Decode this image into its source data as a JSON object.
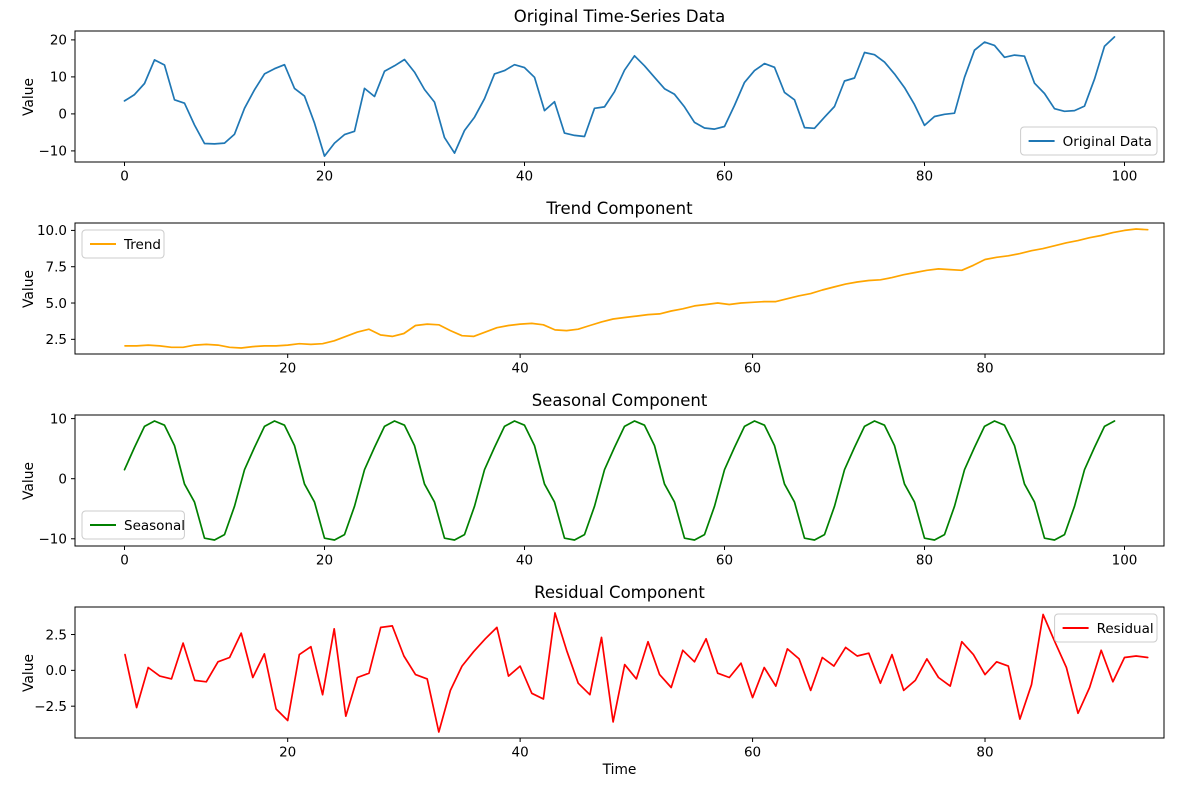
{
  "figure": {
    "background": "#ffffff",
    "xlabel": "Time",
    "text_color": "#000000",
    "spine_color": "#000000",
    "legend_edge_color": "#cccccc",
    "legend_face_color": "#ffffff"
  },
  "chart_data": [
    {
      "type": "line",
      "title": "Original Time-Series Data",
      "ylabel": "Value",
      "xlabel": "",
      "legend": {
        "label": "Original Data",
        "loc": "lower right"
      },
      "color": "#1f77b4",
      "x_start": 0,
      "x_step": 1,
      "xlim": [
        -4.95,
        103.95
      ],
      "ylim": [
        -13.0,
        22.4
      ],
      "xticks": [
        0,
        20,
        40,
        60,
        80,
        100
      ],
      "xtick_labels": [
        "0",
        "20",
        "40",
        "60",
        "80",
        "100"
      ],
      "yticks": [
        -10,
        0,
        10,
        20
      ],
      "ytick_labels": [
        "−10",
        "0",
        "10",
        "20"
      ],
      "grid": false,
      "values": [
        3.5,
        5.2,
        8.2,
        14.6,
        13.2,
        3.8,
        2.9,
        -3.0,
        -8.0,
        -8.1,
        -7.9,
        -5.5,
        1.5,
        6.5,
        10.8,
        12.2,
        13.3,
        6.9,
        4.8,
        -2.5,
        -11.4,
        -7.9,
        -5.6,
        -4.7,
        6.9,
        4.7,
        11.5,
        13.0,
        14.7,
        11.3,
        6.6,
        3.2,
        -6.4,
        -10.6,
        -4.5,
        -0.9,
        4.1,
        10.8,
        11.7,
        13.3,
        12.5,
        9.9,
        0.9,
        3.3,
        -5.2,
        -5.8,
        -6.1,
        1.5,
        1.9,
        6.0,
        11.8,
        15.7,
        13.0,
        9.9,
        6.8,
        5.3,
        1.9,
        -2.3,
        -3.8,
        -4.1,
        -3.4,
        2.3,
        8.5,
        11.7,
        13.6,
        12.6,
        5.8,
        3.8,
        -3.7,
        -3.9,
        -0.9,
        2.0,
        8.9,
        9.7,
        16.6,
        16.0,
        14.0,
        10.8,
        7.1,
        2.5,
        -3.1,
        -0.7,
        -0.1,
        0.2,
        9.9,
        17.2,
        19.4,
        18.5,
        15.3,
        15.9,
        15.6,
        8.3,
        5.5,
        1.4,
        0.7,
        0.9,
        2.1,
        9.4,
        18.3,
        20.8
      ]
    },
    {
      "type": "line",
      "title": "Trend Component",
      "ylabel": "Value",
      "xlabel": "",
      "legend": {
        "label": "Trend",
        "loc": "upper left"
      },
      "color": "#ffa500",
      "x_start": 6,
      "x_step": 1,
      "xlim": [
        1.7,
        95.4
      ],
      "ylim": [
        1.49,
        10.51
      ],
      "xticks": [
        20,
        40,
        60,
        80
      ],
      "xtick_labels": [
        "20",
        "40",
        "60",
        "80"
      ],
      "yticks": [
        2.5,
        5.0,
        7.5,
        10.0
      ],
      "ytick_labels": [
        "2.5",
        "5.0",
        "7.5",
        "10.0"
      ],
      "grid": false,
      "values": [
        2.05,
        2.05,
        2.1,
        2.05,
        1.95,
        1.95,
        2.1,
        2.15,
        2.1,
        1.95,
        1.9,
        2.0,
        2.05,
        2.05,
        2.1,
        2.2,
        2.15,
        2.2,
        2.4,
        2.7,
        3.0,
        3.2,
        2.8,
        2.7,
        2.9,
        3.45,
        3.55,
        3.5,
        3.1,
        2.75,
        2.7,
        3.0,
        3.3,
        3.45,
        3.55,
        3.6,
        3.5,
        3.15,
        3.1,
        3.2,
        3.45,
        3.7,
        3.9,
        4.0,
        4.1,
        4.2,
        4.25,
        4.45,
        4.6,
        4.8,
        4.9,
        5.0,
        4.9,
        5.0,
        5.05,
        5.1,
        5.1,
        5.3,
        5.5,
        5.65,
        5.9,
        6.1,
        6.3,
        6.45,
        6.55,
        6.6,
        6.75,
        6.95,
        7.1,
        7.25,
        7.35,
        7.3,
        7.25,
        7.6,
        8.0,
        8.15,
        8.25,
        8.4,
        8.6,
        8.75,
        8.95,
        9.15,
        9.3,
        9.5,
        9.65,
        9.85,
        10.0,
        10.1,
        10.05
      ]
    },
    {
      "type": "line",
      "title": "Seasonal Component",
      "ylabel": "Value",
      "xlabel": "",
      "legend": {
        "label": "Seasonal",
        "loc": "lower left"
      },
      "color": "#008000",
      "x_start": 0,
      "x_step": 1,
      "xlim": [
        -4.95,
        103.95
      ],
      "ylim": [
        -11.2,
        10.6
      ],
      "xticks": [
        0,
        20,
        40,
        60,
        80,
        100
      ],
      "xtick_labels": [
        "0",
        "20",
        "40",
        "60",
        "80",
        "100"
      ],
      "yticks": [
        -10,
        0,
        10
      ],
      "ytick_labels": [
        "−10",
        "0",
        "10"
      ],
      "grid": false,
      "values": [
        1.5,
        5.2,
        8.7,
        9.6,
        8.9,
        5.5,
        -0.9,
        -3.9,
        -9.9,
        -10.2,
        -9.3,
        -4.6,
        1.5,
        5.2,
        8.7,
        9.6,
        8.9,
        5.5,
        -0.9,
        -3.9,
        -9.9,
        -10.2,
        -9.3,
        -4.6,
        1.5,
        5.2,
        8.7,
        9.6,
        8.9,
        5.5,
        -0.9,
        -3.9,
        -9.9,
        -10.2,
        -9.3,
        -4.6,
        1.5,
        5.2,
        8.7,
        9.6,
        8.9,
        5.5,
        -0.9,
        -3.9,
        -9.9,
        -10.2,
        -9.3,
        -4.6,
        1.5,
        5.2,
        8.7,
        9.6,
        8.9,
        5.5,
        -0.9,
        -3.9,
        -9.9,
        -10.2,
        -9.3,
        -4.6,
        1.5,
        5.2,
        8.7,
        9.6,
        8.9,
        5.5,
        -0.9,
        -3.9,
        -9.9,
        -10.2,
        -9.3,
        -4.6,
        1.5,
        5.2,
        8.7,
        9.6,
        8.9,
        5.5,
        -0.9,
        -3.9,
        -9.9,
        -10.2,
        -9.3,
        -4.6,
        1.5,
        5.2,
        8.7,
        9.6,
        8.9,
        5.5,
        -0.9,
        -3.9,
        -9.9,
        -10.2,
        -9.3,
        -4.6,
        1.5,
        5.2,
        8.7,
        9.6
      ]
    },
    {
      "type": "line",
      "title": "Residual Component",
      "ylabel": "Value",
      "xlabel": "Time",
      "legend": {
        "label": "Residual",
        "loc": "upper right"
      },
      "color": "#ff0000",
      "x_start": 6,
      "x_step": 1,
      "xlim": [
        1.7,
        95.4
      ],
      "ylim": [
        -4.72,
        4.42
      ],
      "xticks": [
        20,
        40,
        60,
        80
      ],
      "xtick_labels": [
        "20",
        "40",
        "60",
        "80"
      ],
      "yticks": [
        -2.5,
        0.0,
        2.5
      ],
      "ytick_labels": [
        "−2.5",
        "0.0",
        "2.5"
      ],
      "grid": false,
      "values": [
        1.1,
        -2.6,
        0.2,
        -0.4,
        -0.6,
        1.9,
        -0.7,
        -0.8,
        0.6,
        0.9,
        2.6,
        -0.5,
        1.15,
        -2.7,
        -3.5,
        1.1,
        1.65,
        -1.7,
        2.9,
        -3.2,
        -0.5,
        -0.2,
        3.0,
        3.1,
        1.0,
        -0.3,
        -0.6,
        -4.3,
        -1.4,
        0.3,
        1.3,
        2.2,
        3.0,
        -0.4,
        0.3,
        -1.6,
        -2.0,
        4.0,
        1.4,
        -0.9,
        -1.7,
        2.3,
        -3.6,
        0.4,
        -0.6,
        2.0,
        -0.3,
        -1.2,
        1.4,
        0.6,
        2.2,
        -0.2,
        -0.5,
        0.5,
        -1.9,
        0.2,
        -1.1,
        1.5,
        0.8,
        -1.4,
        0.9,
        0.3,
        1.6,
        1.0,
        1.2,
        -0.9,
        1.1,
        -1.4,
        -0.7,
        0.8,
        -0.5,
        -1.1,
        2.0,
        1.1,
        -0.3,
        0.6,
        0.3,
        -3.4,
        -1.0,
        3.9,
        2.0,
        0.2,
        -3.0,
        -1.2,
        1.4,
        -0.8,
        0.9,
        1.0,
        0.9
      ]
    }
  ]
}
